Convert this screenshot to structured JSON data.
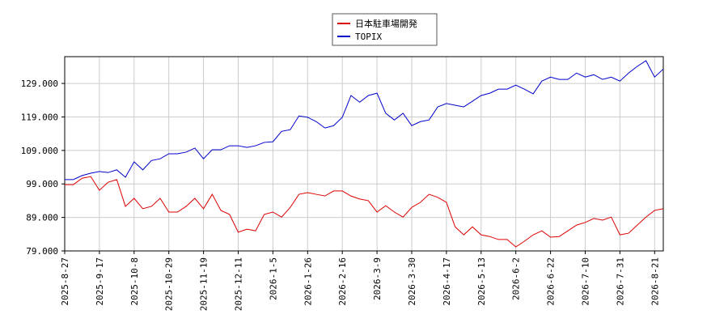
{
  "chart_data": {
    "type": "line",
    "categories": [
      "2025-8-27",
      null,
      null,
      null,
      "2025-9-17",
      null,
      null,
      null,
      "2025-10-8",
      null,
      null,
      null,
      "2025-10-29",
      null,
      null,
      null,
      "2025-11-19",
      null,
      null,
      null,
      "2025-12-11",
      null,
      null,
      null,
      "2026-1-5",
      null,
      null,
      null,
      "2026-1-26",
      null,
      null,
      null,
      "2026-2-16",
      null,
      null,
      null,
      "2026-3-9",
      null,
      null,
      null,
      "2026-3-30",
      null,
      null,
      null,
      "2026-4-17",
      null,
      null,
      null,
      "2026-5-13",
      null,
      null,
      null,
      "2026-6-2",
      null,
      null,
      null,
      "2026-6-22",
      null,
      null,
      null,
      "2026-7-10",
      null,
      null,
      null,
      "2026-7-31",
      null,
      null,
      null,
      "2026-8-21",
      null
    ],
    "series": [
      {
        "name": "日本駐車場開発",
        "color": "#dd0000",
        "values": [
          98.8,
          98.8,
          100.7,
          101.2,
          97.1,
          99.5,
          100.3,
          92.3,
          94.7,
          91.6,
          92.3,
          94.7,
          90.6,
          90.6,
          92.3,
          94.7,
          91.6,
          95.9,
          91.1,
          89.9,
          84.6,
          85.5,
          85,
          89.9,
          90.6,
          89.1,
          92,
          95.9,
          96.4,
          95.9,
          95.4,
          96.9,
          96.9,
          95.4,
          94.5,
          94,
          90.6,
          92.5,
          90.6,
          89.1,
          92,
          93.5,
          95.9,
          95,
          93.5,
          86.2,
          83.8,
          86.2,
          83.8,
          83.3,
          82.4,
          82.4,
          80.2,
          81.9,
          83.8,
          85,
          83.1,
          83.3,
          85,
          86.7,
          87.5,
          88.7,
          88.2,
          89.1,
          83.8,
          84.3,
          86.7,
          89.1,
          91.1,
          91.6
        ]
      },
      {
        "name": "TOPIX",
        "color": "#0000cc",
        "values": [
          100.3,
          100.3,
          101.5,
          102.2,
          102.7,
          102.4,
          103.2,
          101,
          105.6,
          103.2,
          106,
          106.5,
          108,
          108,
          108.5,
          109.7,
          106.5,
          109.2,
          109.2,
          110.4,
          110.4,
          109.9,
          110.4,
          111.4,
          111.6,
          114.7,
          115.2,
          119.3,
          118.9,
          117.6,
          115.7,
          116.4,
          118.9,
          125.4,
          123.4,
          125.4,
          126.1,
          120.1,
          118.1,
          120.1,
          116.4,
          117.6,
          118.1,
          122,
          123,
          122.5,
          122,
          123.7,
          125.4,
          126.1,
          127.3,
          127.3,
          128.5,
          127.3,
          125.9,
          129.7,
          130.9,
          130.2,
          130.2,
          132.1,
          130.9,
          131.6,
          130.2,
          130.9,
          129.7,
          132.1,
          134.1,
          135.8,
          130.9,
          133.3
        ]
      }
    ],
    "xlim": [
      0,
      69
    ],
    "ylim": [
      79,
      137
    ],
    "yticks": [
      {
        "value": 79,
        "label": "79.000"
      },
      {
        "value": 89,
        "label": "89.000"
      },
      {
        "value": 99,
        "label": "99.000"
      },
      {
        "value": 109,
        "label": "109.000"
      },
      {
        "value": 119,
        "label": "119.000"
      },
      {
        "value": 129,
        "label": "129.000"
      }
    ],
    "grid": true,
    "legend": "top"
  }
}
